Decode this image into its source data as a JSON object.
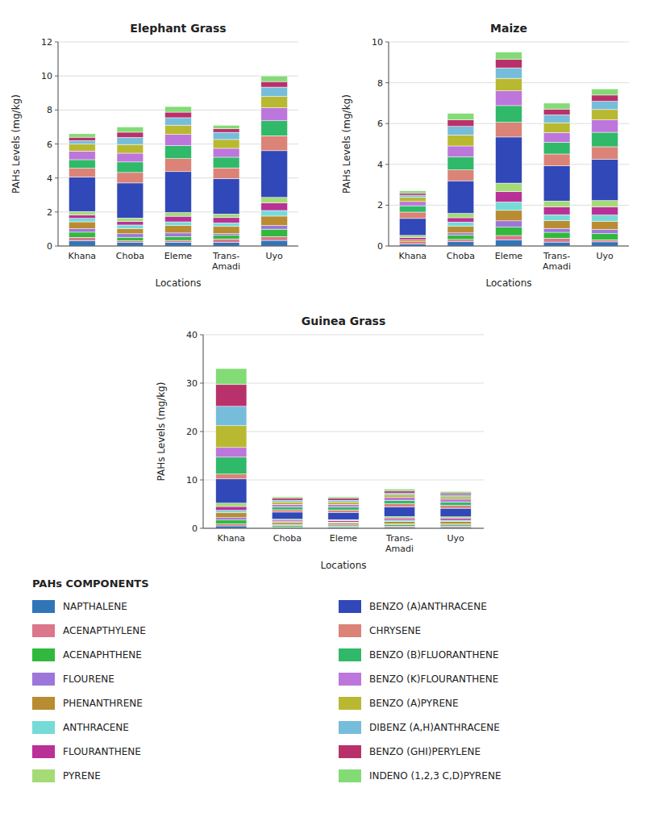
{
  "chart_data": [
    {
      "type": "bar",
      "stacked": true,
      "grid": true,
      "title": "Elephant Grass",
      "xlabel": "Locations",
      "ylabel": "PAHs Levels (mg/kg)",
      "legend_title": "PAHs COMPONENTS",
      "categories": [
        "Khana",
        "Choba",
        "Eleme",
        "Trans-\nAmadi",
        "Uyo"
      ],
      "ylim": [
        0,
        12
      ],
      "yticks": [
        0,
        2,
        4,
        6,
        8,
        10,
        12
      ],
      "series": [
        {
          "name": "NAPTHALENE",
          "values": [
            0.3046,
            0.2059,
            0.2187,
            0.2088,
            0.3297
          ]
        },
        {
          "name": "ACENAPTHYLENE",
          "values": [
            0.2031,
            0.1029,
            0.1093,
            0.2088,
            0.2198
          ]
        },
        {
          "name": "ACENAPHTHENE",
          "values": [
            0.3046,
            0.2059,
            0.2187,
            0.2088,
            0.4396
          ]
        },
        {
          "name": "FLOURENE",
          "values": [
            0.2031,
            0.2059,
            0.2187,
            0.1044,
            0.2198
          ]
        },
        {
          "name": "PHENANTHRENE",
          "values": [
            0.4062,
            0.3088,
            0.4373,
            0.4176,
            0.5495
          ]
        },
        {
          "name": "ANTHRACENE",
          "values": [
            0.2031,
            0.2059,
            0.2187,
            0.2088,
            0.3297
          ]
        },
        {
          "name": "FLOURANTHENE",
          "values": [
            0.2031,
            0.2059,
            0.328,
            0.3132,
            0.4396
          ]
        },
        {
          "name": "PYRENE",
          "values": [
            0.2031,
            0.2059,
            0.2187,
            0.2088,
            0.3297
          ]
        },
        {
          "name": "BENZO (A)ANTHRACENE",
          "values": [
            2.0308,
            2.0588,
            2.4053,
            2.0882,
            2.7473
          ]
        },
        {
          "name": "CHRYSENE",
          "values": [
            0.5077,
            0.6176,
            0.7653,
            0.6265,
            0.8791
          ]
        },
        {
          "name": "BENZO (B)FLUORANTHENE",
          "values": [
            0.5077,
            0.6176,
            0.7653,
            0.6265,
            0.8791
          ]
        },
        {
          "name": "BENZO (K)FLOURANTHENE",
          "values": [
            0.5077,
            0.5147,
            0.656,
            0.5221,
            0.7692
          ]
        },
        {
          "name": "BENZO (A)PYRENE",
          "values": [
            0.4062,
            0.5147,
            0.5467,
            0.5221,
            0.6593
          ]
        },
        {
          "name": "DIBENZ (A,H)ANTHRACENE",
          "values": [
            0.2031,
            0.4118,
            0.4373,
            0.4176,
            0.5495
          ]
        },
        {
          "name": "BENZO (GHI)PERYLENE",
          "values": [
            0.2031,
            0.3088,
            0.328,
            0.2088,
            0.3297
          ]
        },
        {
          "name": "INDENO (1,2,3 C,D)PYRENE",
          "values": [
            0.2031,
            0.3088,
            0.328,
            0.2088,
            0.3297
          ]
        }
      ]
    },
    {
      "type": "bar",
      "stacked": true,
      "grid": true,
      "title": "Maize",
      "xlabel": "Locations",
      "ylabel": "PAHs Levels (mg/kg)",
      "categories": [
        "Khana",
        "Choba",
        "Eleme",
        "Trans-\nAmadi",
        "Uyo"
      ],
      "ylim": [
        0,
        10
      ],
      "yticks": [
        0,
        2,
        4,
        6,
        8,
        10
      ],
      "series": [
        {
          "name": "NAPTHALENE",
          "values": [
            0.1038,
            0.2131,
            0.3081,
            0.1918,
            0.2026
          ]
        },
        {
          "name": "ACENAPTHYLENE",
          "values": [
            0.1038,
            0.1066,
            0.2054,
            0.1918,
            0.1013
          ]
        },
        {
          "name": "ACENAPHTHENE",
          "values": [
            0,
            0.2131,
            0.4108,
            0.2877,
            0.3039
          ]
        },
        {
          "name": "FLOURENE",
          "values": [
            0,
            0.1066,
            0.3081,
            0.1918,
            0.2026
          ]
        },
        {
          "name": "PHENANTHRENE",
          "values": [
            0.1038,
            0.3197,
            0.5135,
            0.3836,
            0.4053
          ]
        },
        {
          "name": "ANTHRACENE",
          "values": [
            0,
            0.2131,
            0.4108,
            0.2877,
            0.3039
          ]
        },
        {
          "name": "FLOURANTHENE",
          "values": [
            0.1038,
            0.2131,
            0.5135,
            0.3836,
            0.4053
          ]
        },
        {
          "name": "PYRENE",
          "values": [
            0.1038,
            0.2131,
            0.4108,
            0.2877,
            0.3039
          ]
        },
        {
          "name": "BENZO (A)ANTHRACENE",
          "values": [
            0.8308,
            1.5984,
            2.2595,
            1.726,
            2.0263
          ]
        },
        {
          "name": "CHRYSENE",
          "values": [
            0.3115,
            0.5328,
            0.7189,
            0.5753,
            0.6079
          ]
        },
        {
          "name": "BENZO (B)FLUORANTHENE",
          "values": [
            0.3115,
            0.6393,
            0.8216,
            0.5753,
            0.7092
          ]
        },
        {
          "name": "BENZO (K)FLOURANTHENE",
          "values": [
            0.2077,
            0.5328,
            0.7189,
            0.4795,
            0.6079
          ]
        },
        {
          "name": "BENZO (A)PYRENE",
          "values": [
            0.2077,
            0.5328,
            0.6162,
            0.4795,
            0.5066
          ]
        },
        {
          "name": "DIBENZ (A,H)ANTHRACENE",
          "values": [
            0.1038,
            0.4262,
            0.5135,
            0.3836,
            0.4053
          ]
        },
        {
          "name": "BENZO (GHI)PERYLENE",
          "values": [
            0.1038,
            0.3197,
            0.4108,
            0.2877,
            0.3039
          ]
        },
        {
          "name": "INDENO (1,2,3 C,D)PYRENE",
          "values": [
            0.1038,
            0.3197,
            0.3595,
            0.2877,
            0.3039
          ]
        }
      ]
    },
    {
      "type": "bar",
      "stacked": true,
      "grid": true,
      "title": "Guinea Grass",
      "xlabel": "Locations",
      "ylabel": "PAHs Levels (mg/kg)",
      "categories": [
        "Khana",
        "Choba",
        "Eleme",
        "Trans-\nAmadi",
        "Uyo"
      ],
      "ylim": [
        0,
        40
      ],
      "yticks": [
        0,
        10,
        20,
        30,
        40
      ],
      "series": [
        {
          "name": "NAPTHALENE",
          "values": [
            0.5,
            0.197,
            0.2,
            0.2025,
            0.1974
          ]
        },
        {
          "name": "ACENAPTHYLENE",
          "values": [
            0.4,
            0.0985,
            0.1,
            0.2025,
            0.1974
          ]
        },
        {
          "name": "ACENAPHTHENE",
          "values": [
            0.8,
            0.2955,
            0.2,
            0.30375,
            0.2961
          ]
        },
        {
          "name": "FLOURENE",
          "values": [
            0.5,
            0.197,
            0.2,
            0.2025,
            0.1974
          ]
        },
        {
          "name": "PHENANTHRENE",
          "values": [
            1.0,
            0.3939,
            0.4,
            0.50625,
            0.4935
          ]
        },
        {
          "name": "ANTHRACENE",
          "values": [
            0.5,
            0.197,
            0.2,
            0.30375,
            0.2961
          ]
        },
        {
          "name": "FLOURANTHENE",
          "values": [
            0.8,
            0.2955,
            0.3,
            0.405,
            0.3948
          ]
        },
        {
          "name": "PYRENE",
          "values": [
            0.7,
            0.197,
            0.2,
            0.30375,
            0.2961
          ]
        },
        {
          "name": "BENZO (A)ANTHRACENE",
          "values": [
            5.0,
            1.4773,
            1.5,
            2.025,
            1.7766
          ]
        },
        {
          "name": "CHRYSENE",
          "values": [
            1.0,
            0.4924,
            0.5,
            0.6075,
            0.5922
          ]
        },
        {
          "name": "BENZO (B)FLUORANTHENE",
          "values": [
            3.5,
            0.5909,
            0.6,
            0.70875,
            0.6909
          ]
        },
        {
          "name": "BENZO (K)FLOURANTHENE",
          "values": [
            2.0,
            0.4924,
            0.5,
            0.6075,
            0.5922
          ]
        },
        {
          "name": "BENZO (A)PYRENE",
          "values": [
            4.5,
            0.4924,
            0.5,
            0.50625,
            0.4935
          ]
        },
        {
          "name": "DIBENZ (A,H)ANTHRACENE",
          "values": [
            4.0,
            0.3939,
            0.4,
            0.405,
            0.3948
          ]
        },
        {
          "name": "BENZO (GHI)PERYLENE",
          "values": [
            4.5,
            0.3939,
            0.4,
            0.405,
            0.3948
          ]
        },
        {
          "name": "INDENO (1,2,3 C,D)PYRENE",
          "values": [
            3.3,
            0.2955,
            0.3,
            0.405,
            0.2961
          ]
        }
      ]
    }
  ]
}
